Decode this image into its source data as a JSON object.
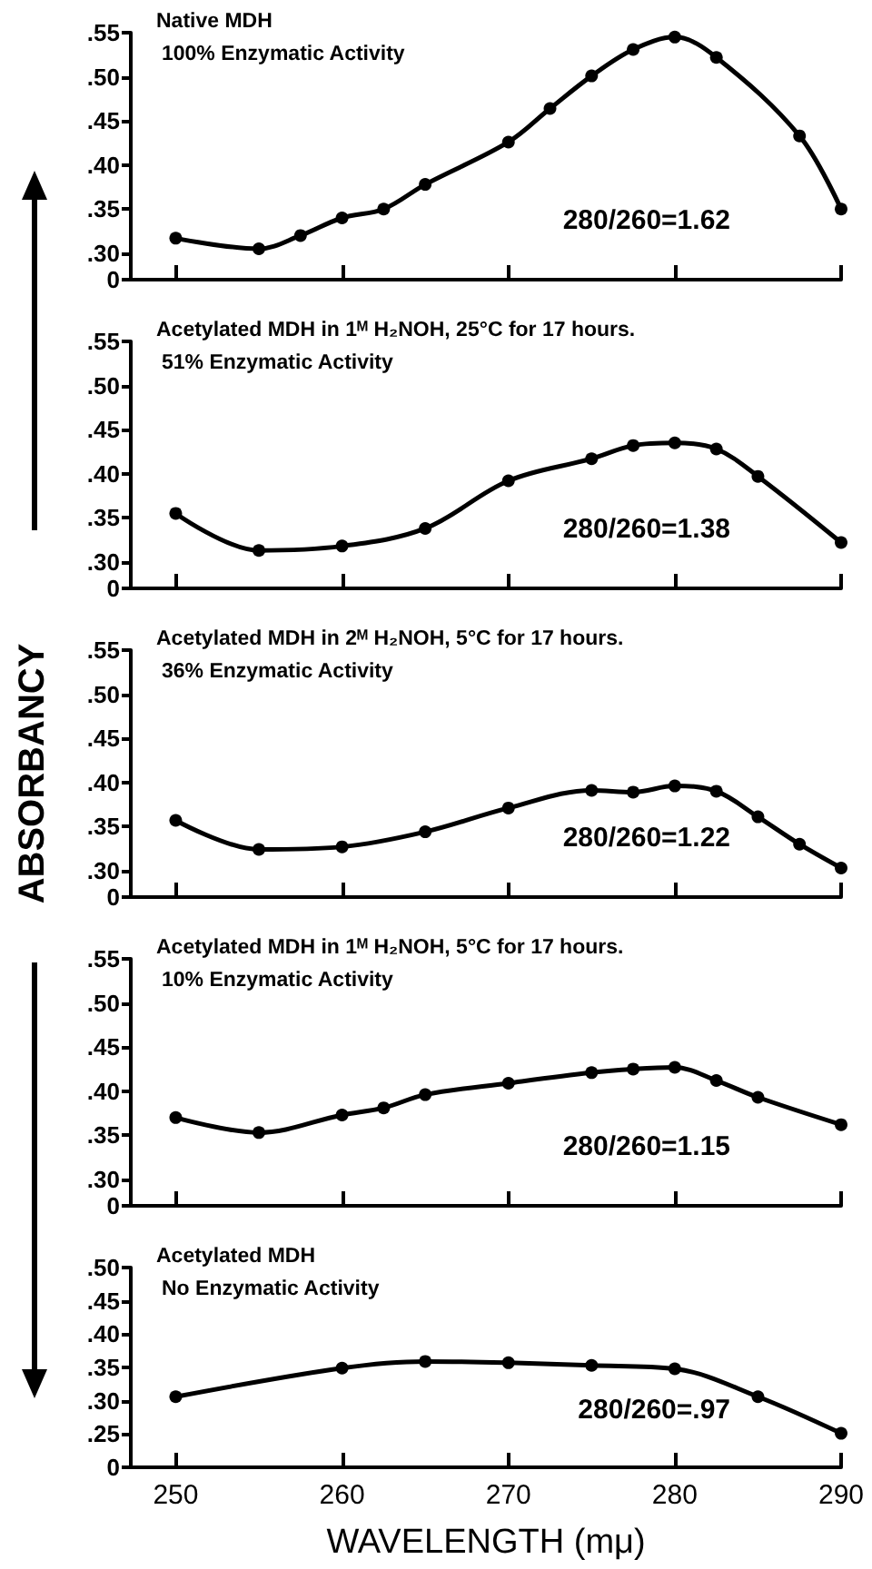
{
  "chart_data": [
    {
      "type": "line",
      "title": "Native MDH",
      "subtitle": "100% Enzymatic Activity",
      "annotations": [
        "280/260=1.62"
      ],
      "tick_labels": "y",
      "marker": "circle",
      "line_style": "solid",
      "grid": false,
      "x": [
        250,
        255,
        257.5,
        260,
        262.5,
        265,
        270,
        272.5,
        275,
        277.5,
        280,
        282.5,
        287.5,
        290
      ],
      "series": [
        {
          "color": "#000000",
          "values": [
            0.317,
            0.305,
            0.32,
            0.34,
            0.35,
            0.378,
            0.426,
            0.464,
            0.501,
            0.531,
            0.545,
            0.522,
            0.433,
            0.35
          ]
        }
      ],
      "xlim": [
        247.3,
        290
      ],
      "xticks": [
        250,
        260,
        270,
        280,
        290
      ],
      "ylim": [
        0.27,
        0.55
      ],
      "yticks": [
        {
          "value": 0.27,
          "label": "0"
        },
        {
          "value": 0.3,
          "label": ".30"
        },
        {
          "value": 0.35,
          "label": ".35"
        },
        {
          "value": 0.4,
          "label": ".40"
        },
        {
          "value": 0.45,
          "label": ".45"
        },
        {
          "value": 0.5,
          "label": ".50"
        },
        {
          "value": 0.55,
          "label": ".55"
        }
      ]
    },
    {
      "type": "line",
      "title": "Acetylated MDH in 1ᴹ H₂NOH, 25°C for 17 hours.",
      "subtitle": "51% Enzymatic Activity",
      "annotations": [
        "280/260=1.38"
      ],
      "tick_labels": "y",
      "marker": "circle",
      "line_style": "solid",
      "grid": false,
      "x": [
        250,
        255,
        260,
        265,
        270,
        275,
        277.5,
        280,
        282.5,
        285,
        290
      ],
      "series": [
        {
          "color": "#000000",
          "values": [
            0.355,
            0.313,
            0.318,
            0.338,
            0.392,
            0.417,
            0.432,
            0.435,
            0.428,
            0.397,
            0.322
          ]
        }
      ],
      "xlim": [
        247.3,
        290
      ],
      "xticks": [
        250,
        260,
        270,
        280,
        290
      ],
      "ylim": [
        0.27,
        0.55
      ],
      "yticks": [
        {
          "value": 0.27,
          "label": "0"
        },
        {
          "value": 0.3,
          "label": ".30"
        },
        {
          "value": 0.35,
          "label": ".35"
        },
        {
          "value": 0.4,
          "label": ".40"
        },
        {
          "value": 0.45,
          "label": ".45"
        },
        {
          "value": 0.5,
          "label": ".50"
        },
        {
          "value": 0.55,
          "label": ".55"
        }
      ]
    },
    {
      "type": "line",
      "title": "Acetylated MDH in 2ᴹ H₂NOH, 5°C for 17 hours.",
      "subtitle": "36% Enzymatic Activity",
      "ylabel": "ABSORBANCY",
      "annotations": [
        "280/260=1.22"
      ],
      "tick_labels": "y",
      "marker": "circle",
      "line_style": "solid",
      "grid": false,
      "x": [
        250,
        255,
        260,
        265,
        270,
        275,
        277.5,
        280,
        282.5,
        285,
        287.5,
        290
      ],
      "series": [
        {
          "color": "#000000",
          "values": [
            0.357,
            0.324,
            0.327,
            0.344,
            0.371,
            0.391,
            0.389,
            0.396,
            0.39,
            0.361,
            0.33,
            0.303
          ]
        }
      ],
      "xlim": [
        247.3,
        290
      ],
      "xticks": [
        250,
        260,
        270,
        280,
        290
      ],
      "ylim": [
        0.27,
        0.55
      ],
      "yticks": [
        {
          "value": 0.27,
          "label": "0"
        },
        {
          "value": 0.3,
          "label": ".30"
        },
        {
          "value": 0.35,
          "label": ".35"
        },
        {
          "value": 0.4,
          "label": ".40"
        },
        {
          "value": 0.45,
          "label": ".45"
        },
        {
          "value": 0.5,
          "label": ".50"
        },
        {
          "value": 0.55,
          "label": ".55"
        }
      ]
    },
    {
      "type": "line",
      "title": "Acetylated MDH in 1ᴹ H₂NOH, 5°C for 17 hours.",
      "subtitle": "10% Enzymatic Activity",
      "annotations": [
        "280/260=1.15"
      ],
      "tick_labels": "y",
      "marker": "circle",
      "line_style": "solid",
      "grid": false,
      "x": [
        250,
        255,
        260,
        262.5,
        265,
        270,
        275,
        277.5,
        280,
        282.5,
        285,
        290
      ],
      "series": [
        {
          "color": "#000000",
          "values": [
            0.37,
            0.353,
            0.373,
            0.381,
            0.396,
            0.409,
            0.421,
            0.425,
            0.427,
            0.412,
            0.393,
            0.362
          ]
        }
      ],
      "xlim": [
        247.3,
        290
      ],
      "xticks": [
        250,
        260,
        270,
        280,
        290
      ],
      "ylim": [
        0.27,
        0.55
      ],
      "yticks": [
        {
          "value": 0.27,
          "label": "0"
        },
        {
          "value": 0.3,
          "label": ".30"
        },
        {
          "value": 0.35,
          "label": ".35"
        },
        {
          "value": 0.4,
          "label": ".40"
        },
        {
          "value": 0.45,
          "label": ".45"
        },
        {
          "value": 0.5,
          "label": ".50"
        },
        {
          "value": 0.55,
          "label": ".55"
        }
      ]
    },
    {
      "type": "line",
      "title": "Acetylated MDH",
      "subtitle": "No Enzymatic Activity",
      "xlabel": "WAVELENGTH (mμ)",
      "annotations": [
        "280/260=.97"
      ],
      "marker": "circle",
      "line_style": "solid",
      "grid": false,
      "x": [
        250,
        260,
        265,
        270,
        275,
        280,
        285,
        290
      ],
      "series": [
        {
          "color": "#000000",
          "values": [
            0.306,
            0.349,
            0.359,
            0.357,
            0.353,
            0.348,
            0.306,
            0.251
          ]
        }
      ],
      "xlim": [
        247.3,
        290
      ],
      "xticks": [
        250,
        260,
        270,
        280,
        290
      ],
      "ylim": [
        0.2,
        0.5
      ],
      "yticks": [
        {
          "value": 0.2,
          "label": "0"
        },
        {
          "value": 0.25,
          "label": ".25"
        },
        {
          "value": 0.3,
          "label": ".30"
        },
        {
          "value": 0.35,
          "label": ".35"
        },
        {
          "value": 0.4,
          "label": ".40"
        },
        {
          "value": 0.45,
          "label": ".45"
        },
        {
          "value": 0.5,
          "label": ".50"
        }
      ]
    }
  ]
}
